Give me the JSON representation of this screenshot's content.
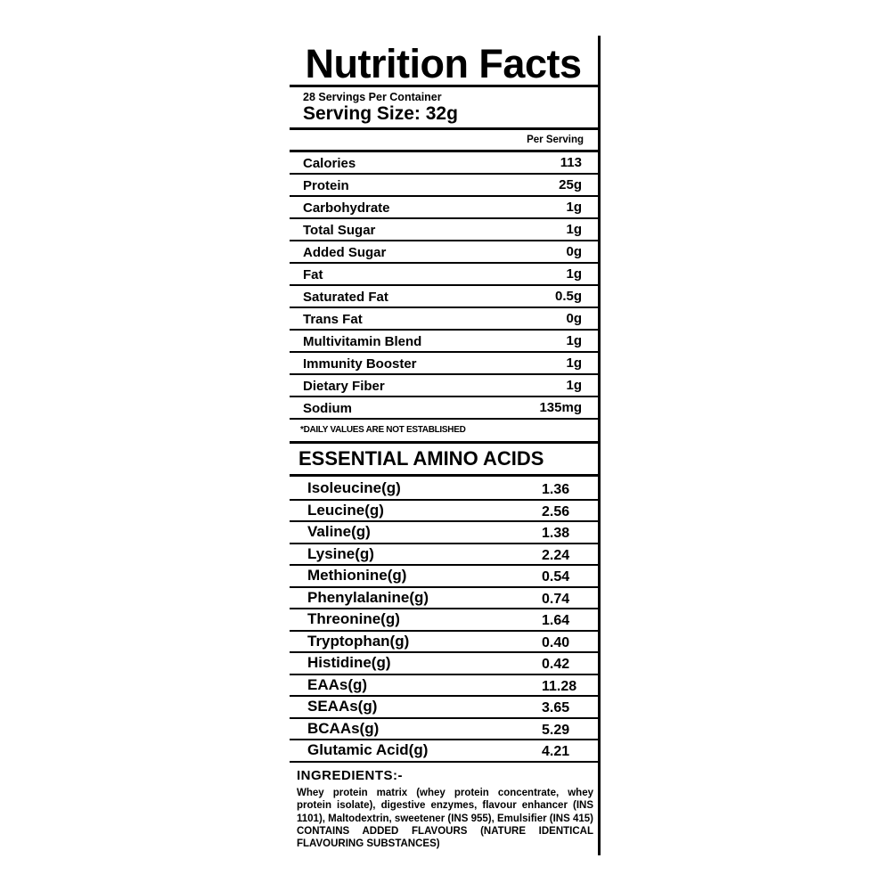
{
  "title": "Nutrition Facts",
  "servings_per_container": "28 Servings Per Container",
  "serving_size": "Serving Size: 32g",
  "column_header": "Per Serving",
  "nutrients": [
    {
      "label": "Calories",
      "value": "113"
    },
    {
      "label": "Protein",
      "value": "25g"
    },
    {
      "label": "Carbohydrate",
      "value": "1g"
    },
    {
      "label": "Total Sugar",
      "value": "1g"
    },
    {
      "label": "Added Sugar",
      "value": "0g"
    },
    {
      "label": "Fat",
      "value": "1g"
    },
    {
      "label": "Saturated Fat",
      "value": "0.5g"
    },
    {
      "label": "Trans Fat",
      "value": "0g"
    },
    {
      "label": "Multivitamin Blend",
      "value": "1g"
    },
    {
      "label": "Immunity Booster",
      "value": "1g"
    },
    {
      "label": "Dietary Fiber",
      "value": "1g"
    },
    {
      "label": "Sodium",
      "value": "135mg"
    }
  ],
  "footnote": "*DAILY VALUES ARE NOT ESTABLISHED",
  "amino_title": "ESSENTIAL AMINO ACIDS",
  "amino_acids": [
    {
      "label": "Isoleucine(g)",
      "value": "1.36"
    },
    {
      "label": "Leucine(g)",
      "value": "2.56"
    },
    {
      "label": "Valine(g)",
      "value": "1.38"
    },
    {
      "label": "Lysine(g)",
      "value": "2.24"
    },
    {
      "label": "Methionine(g)",
      "value": "0.54"
    },
    {
      "label": "Phenylalanine(g)",
      "value": "0.74"
    },
    {
      "label": "Threonine(g)",
      "value": "1.64"
    },
    {
      "label": "Tryptophan(g)",
      "value": "0.40"
    },
    {
      "label": "Histidine(g)",
      "value": "0.42"
    },
    {
      "label": "EAAs(g)",
      "value": "11.28"
    },
    {
      "label": "SEAAs(g)",
      "value": "3.65"
    },
    {
      "label": "BCAAs(g)",
      "value": "5.29"
    },
    {
      "label": "Glutamic Acid(g)",
      "value": "4.21"
    }
  ],
  "ingredients_title": "INGREDIENTS:-",
  "ingredients_text": "Whey protein matrix (whey protein concentrate, whey protein isolate), digestive enzymes, flavour enhancer (INS 1101), Maltodextrin, sweetener (INS 955), Emulsifier (INS 415) CONTAINS ADDED FLAVOURS (NATURE IDENTICAL FLAVOURING SUBSTANCES)"
}
